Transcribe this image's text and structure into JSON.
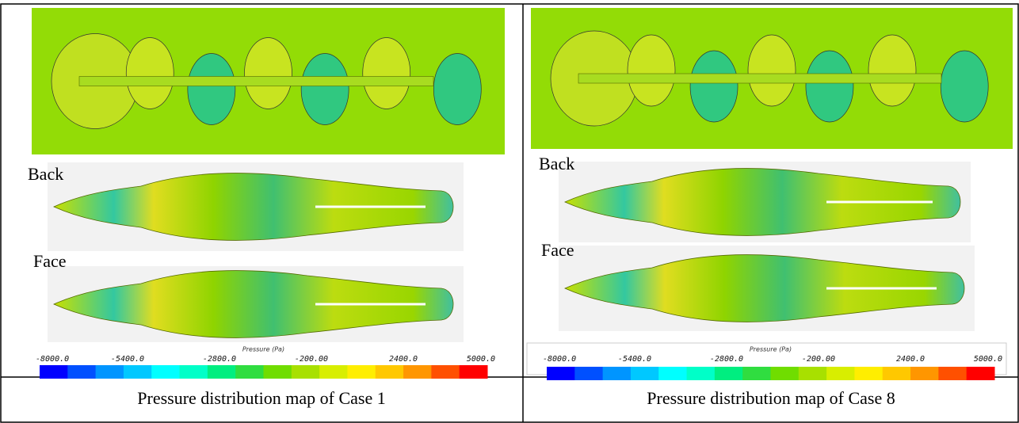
{
  "panels": [
    {
      "back_label": "Back",
      "face_label": "Face",
      "colorbar": {
        "title": "Pressure (Pa)",
        "ticks": [
          "-8000.0",
          "-5400.0",
          "-2800.0",
          "-200.00",
          "2400.0",
          "5000.0"
        ]
      },
      "caption": "Pressure distribution map of Case 1"
    },
    {
      "back_label": "Back",
      "face_label": "Face",
      "colorbar": {
        "title": "Pressure (Pa)",
        "ticks": [
          "-8000.0",
          "-5400.0",
          "-2800.0",
          "-200.00",
          "2400.0",
          "5000.0"
        ]
      },
      "caption": "Pressure distribution map of Case 8"
    }
  ]
}
